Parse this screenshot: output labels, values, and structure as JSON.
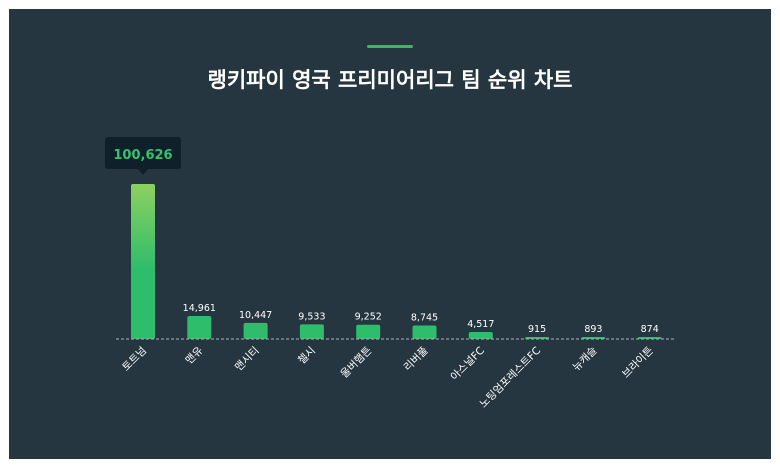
{
  "title": "랭키파이 영국 프리미어리그 팀 순위 차트",
  "colors": {
    "background": "#263640",
    "bar_top_highlight": "#8ed05f",
    "bar": "#2ebd6b",
    "tooltip_bg": "#10202a",
    "tooltip_text": "#35c46e",
    "text": "#ffffff",
    "baseline": "#aab4b8"
  },
  "chart_data": {
    "type": "bar",
    "title": "랭키파이 영국 프리미어리그 팀 순위 차트",
    "categories": [
      "토트넘",
      "맨유",
      "맨시티",
      "첼시",
      "울버햄튼",
      "리버풀",
      "아스널FC",
      "노팅엄포레스트FC",
      "뉴캐슬",
      "브라이튼"
    ],
    "values": [
      100626,
      14961,
      10447,
      9533,
      9252,
      8745,
      4517,
      915,
      893,
      874
    ],
    "value_labels": [
      "100,626",
      "14,961",
      "10,447",
      "9,533",
      "9,252",
      "8,745",
      "4,517",
      "915",
      "893",
      "874"
    ],
    "highlight_index": 0,
    "grid": false,
    "legend": "none"
  }
}
